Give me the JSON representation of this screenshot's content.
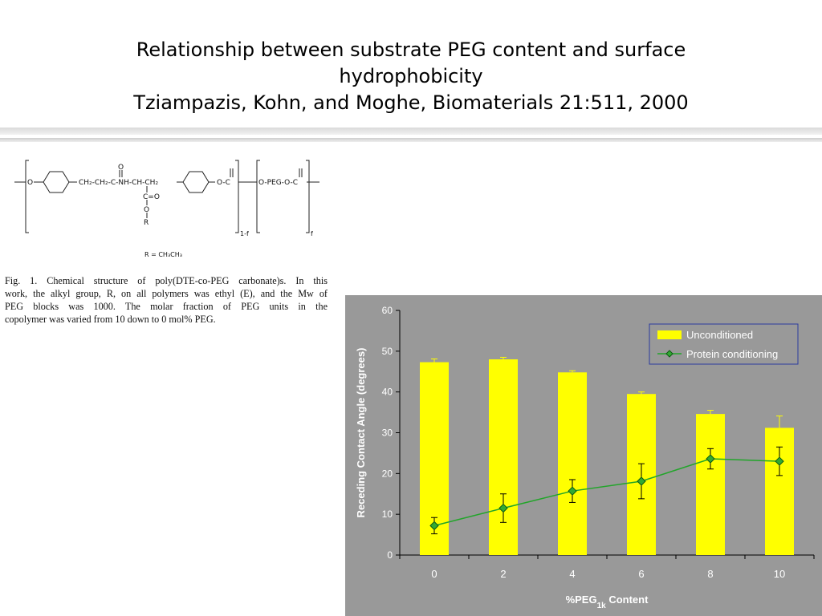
{
  "slide": {
    "title_lines": [
      "Relationship between substrate PEG content and surface",
      "hydrophobicity",
      "Tziampazis, Kohn, and Moghe, Biomaterials 21:511, 2000"
    ]
  },
  "figure": {
    "structure_labels": {
      "o_left": "O",
      "backbone": "CH₂-CH₂-C-NH-CH-CH₂",
      "o_c": "O-C",
      "o_peg": "O-PEG-O-C",
      "carbonyl_o": "O",
      "c_eq_o": "C=O",
      "ester_o": "O",
      "r": "R",
      "sub_1f": "1-f",
      "sub_f": "f",
      "r_def": "R = CH₃CH₃"
    },
    "caption_lines": [
      "Fig. 1.  Chemical structure of poly(DTE-co-PEG carbonate)s. In this",
      "work, the alkyl group, R, on all polymers was ethyl (E), and the Mw of",
      "PEG blocks was 1000. The molar fraction of PEG units in the",
      "copolymer was varied from 10 down to 0 mol% PEG."
    ]
  },
  "chart_data": {
    "type": "bar",
    "categories": [
      "0",
      "2",
      "4",
      "6",
      "8",
      "10"
    ],
    "series": [
      {
        "name": "Unconditioned",
        "kind": "bar",
        "color": "#ffff00",
        "values": [
          47.3,
          48.0,
          44.8,
          39.5,
          34.6,
          31.2
        ],
        "errors": [
          0.8,
          0.5,
          0.4,
          0.5,
          0.9,
          2.9
        ]
      },
      {
        "name": "Protein conditioning",
        "kind": "line",
        "color": "#22a52a",
        "marker_color": "#33aa33",
        "values": [
          7.2,
          11.5,
          15.7,
          18.1,
          23.6,
          23.0
        ],
        "errors": [
          2.0,
          3.5,
          2.8,
          4.3,
          2.5,
          3.5
        ]
      }
    ],
    "xlabel_main": "%PEG",
    "xlabel_sub": "1k",
    "xlabel_tail": " Content",
    "ylabel": "Receding Contact Angle (degrees)",
    "ylim": [
      0,
      60
    ],
    "yticks": [
      "0",
      "10",
      "20",
      "30",
      "40",
      "50",
      "60"
    ],
    "grid": false,
    "legend_position": "top-right",
    "colors": {
      "panel": "#999999",
      "axis_text": "#ffffff",
      "legend_border": "#2a3aa0"
    }
  }
}
